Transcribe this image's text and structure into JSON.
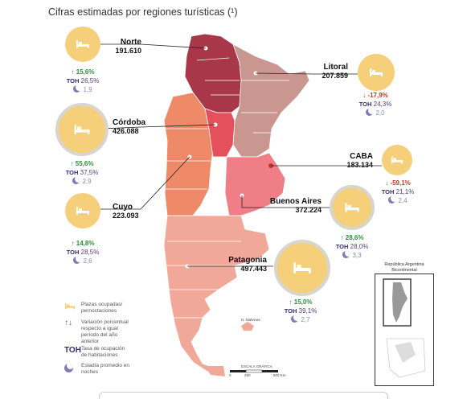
{
  "title": "Cifras estimadas por regiones turísticas (¹)",
  "regions": [
    {
      "name": "Norte",
      "value": "191.610",
      "var": "15,6%",
      "dir": "up",
      "toh": "26,5%",
      "stay": "1,9",
      "color": "#a8374a"
    },
    {
      "name": "Litoral",
      "value": "207.859",
      "var": "-17,9%",
      "dir": "down",
      "toh": "24,3%",
      "stay": "2,0",
      "color": "#c99690"
    },
    {
      "name": "Córdoba",
      "value": "426.088",
      "var": "55,6%",
      "dir": "up",
      "toh": "37,5%",
      "stay": "2,9",
      "color": "#e4505c"
    },
    {
      "name": "CABA",
      "value": "183.134",
      "var": "-59,1%",
      "dir": "down",
      "toh": "21,1%",
      "stay": "2,4",
      "color": "#c0392b"
    },
    {
      "name": "Cuyo",
      "value": "223.093",
      "var": "14,8%",
      "dir": "up",
      "toh": "28,5%",
      "stay": "2,6",
      "color": "#ef8a68"
    },
    {
      "name": "Buenos Aires",
      "value": "372.224",
      "var": "28,6%",
      "dir": "up",
      "toh": "28,0%",
      "stay": "3,3",
      "color": "#ef7e86"
    },
    {
      "name": "Patagonia",
      "value": "497.443",
      "var": "15,0%",
      "dir": "up",
      "toh": "39,1%",
      "stay": "2,7",
      "color": "#f1a899"
    }
  ],
  "toh_label": "TOH",
  "legend": {
    "plazas": "Plazas ocupadas/ pernoctaciones",
    "variacion": "Variación porcentual respecto a igual período del año anterior",
    "toh": "Tasa de ocupación de habitaciones",
    "estadia": "Estadía promedio en noches"
  },
  "inset_title": "República Argentina Bicontinental",
  "islas_label": "Is. Malvinas",
  "scale_label": "ESCALA GRÁFICA",
  "scale_ticks": [
    "0",
    "250",
    "500 Km"
  ],
  "colors": {
    "circle": "#f6cf7a",
    "up": "#2e8b3a",
    "down": "#c0392b",
    "toh": "#3a2a6a"
  }
}
